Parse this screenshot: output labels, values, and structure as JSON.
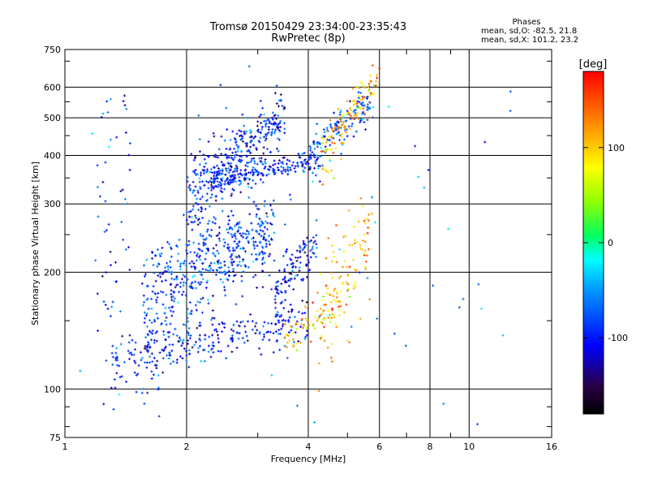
{
  "chart_data": {
    "type": "scatter",
    "title": "Tromsø 20150429 23:34:00-23:35:43",
    "subtitle": "RwPretec (8p)",
    "xlabel": "Frequency [MHz]",
    "ylabel": "Stationary phase Virtual Height [km]",
    "x_scale": "log2",
    "y_scale": "log",
    "xlim": [
      1,
      16
    ],
    "ylim": [
      75,
      750
    ],
    "x_ticks": [
      "1",
      "2",
      "4",
      "6",
      "8",
      "10",
      "16"
    ],
    "x_tick_values": [
      1,
      2,
      4,
      6,
      8,
      10,
      16
    ],
    "x_minor_values": [
      3,
      5,
      7,
      9
    ],
    "y_ticks": [
      "75",
      "100",
      "200",
      "300",
      "400",
      "500",
      "600",
      "750"
    ],
    "y_tick_values": [
      75,
      100,
      200,
      300,
      400,
      500,
      600,
      750
    ],
    "grid": true,
    "phase_stats": {
      "heading": "Phases",
      "line_o": "mean, sd,O: -82.5, 21.8",
      "line_x": "mean, sd,X: 101.2, 23.2"
    },
    "colorbar": {
      "label": "[deg]",
      "range": [
        -180,
        180
      ],
      "ticks": [
        "100",
        "0",
        "-100"
      ],
      "tick_values": [
        100,
        0,
        -100
      ],
      "colormap": [
        "#000000",
        "#3a0060",
        "#0000ff",
        "#00ffff",
        "#00ff00",
        "#ffff00",
        "#ff8000",
        "#ff0000"
      ]
    },
    "clusters": [
      {
        "name": "low trace",
        "x_start": 1.3,
        "x_end": 4.0,
        "h_start": 115,
        "h_end": 150,
        "spread": 9,
        "phase": -100,
        "n": 260
      },
      {
        "name": "low trace X",
        "x_start": 3.5,
        "x_end": 4.8,
        "h_start": 135,
        "h_end": 165,
        "spread": 8,
        "phase": 105,
        "n": 70
      },
      {
        "name": "mid blob",
        "x_start": 1.55,
        "x_end": 3.3,
        "h_start": 160,
        "h_end": 260,
        "spread": 30,
        "phase": -90,
        "n": 520
      },
      {
        "name": "upper blob",
        "x_start": 2.0,
        "x_end": 3.5,
        "h_start": 300,
        "h_end": 500,
        "spread": 40,
        "phase": -95,
        "n": 360
      },
      {
        "name": "F trace",
        "x_start": 2.3,
        "x_end": 4.2,
        "h_start": 340,
        "h_end": 390,
        "spread": 12,
        "phase": -95,
        "n": 200
      },
      {
        "name": "F2 rise O",
        "x_start": 4.0,
        "x_end": 5.8,
        "h_start": 390,
        "h_end": 560,
        "spread": 30,
        "phase": -75,
        "n": 150
      },
      {
        "name": "F2 rise X",
        "x_start": 4.3,
        "x_end": 6.0,
        "h_start": 380,
        "h_end": 650,
        "spread": 40,
        "phase": 110,
        "n": 120
      },
      {
        "name": "mid right X",
        "x_start": 4.2,
        "x_end": 5.8,
        "h_start": 150,
        "h_end": 260,
        "spread": 35,
        "phase": 105,
        "n": 110
      },
      {
        "name": "mid right O",
        "x_start": 3.3,
        "x_end": 4.2,
        "h_start": 180,
        "h_end": 240,
        "spread": 15,
        "phase": -100,
        "n": 110
      },
      {
        "name": "low vertical",
        "x_start": 1.2,
        "x_end": 1.45,
        "h_start": 90,
        "h_end": 640,
        "spread": 0,
        "phase": -95,
        "n": 55
      },
      {
        "name": "sparse",
        "x_start": 1.05,
        "x_end": 14,
        "h_start": 80,
        "h_end": 700,
        "spread": 0,
        "phase": -60,
        "n": 60
      }
    ]
  }
}
